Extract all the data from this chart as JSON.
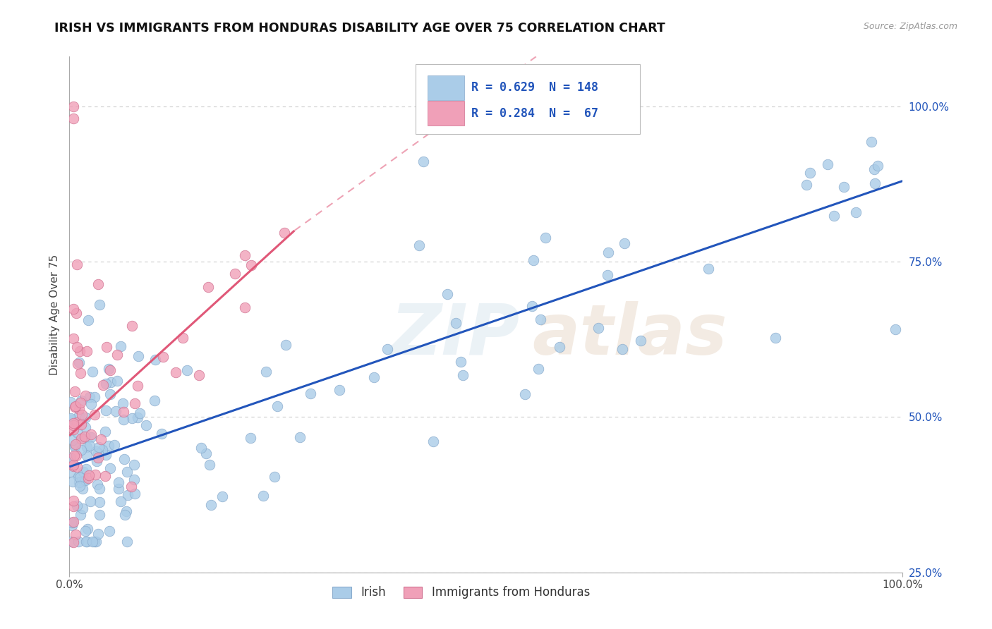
{
  "title": "IRISH VS IMMIGRANTS FROM HONDURAS DISABILITY AGE OVER 75 CORRELATION CHART",
  "source": "Source: ZipAtlas.com",
  "ylabel": "Disability Age Over 75",
  "xmin": 0.0,
  "xmax": 1.0,
  "ymin": 0.28,
  "ymax": 1.08,
  "ytick_labels": [
    "25.0%",
    "50.0%",
    "75.0%",
    "100.0%"
  ],
  "ytick_vals": [
    0.25,
    0.5,
    0.75,
    1.0
  ],
  "legend_irish_R": "0.629",
  "legend_irish_N": "148",
  "legend_honduras_R": "0.284",
  "legend_honduras_N": " 67",
  "irish_color": "#aacce8",
  "irish_edge_color": "#88aacc",
  "honduras_color": "#f0a0b8",
  "honduras_edge_color": "#d07090",
  "trend_irish_color": "#2255bb",
  "trend_honduras_color": "#e05878",
  "background_color": "#ffffff",
  "grid_color": "#cccccc"
}
